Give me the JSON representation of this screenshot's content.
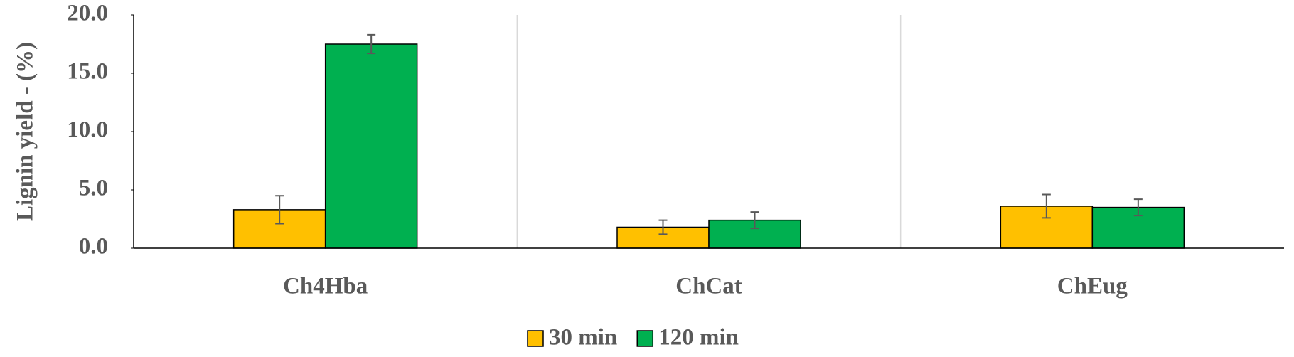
{
  "chart_data": {
    "type": "bar",
    "y_label": "Lignin yield - (%)",
    "categories": [
      "Ch4Hba",
      "ChCat",
      "ChEug"
    ],
    "series": [
      {
        "name": "30 min",
        "color": "#ffc000",
        "values": [
          3.3,
          1.8,
          3.6
        ],
        "errors": [
          1.2,
          0.6,
          1.0
        ]
      },
      {
        "name": "120 min",
        "color": "#00b050",
        "values": [
          17.5,
          2.4,
          3.5
        ],
        "errors": [
          0.8,
          0.7,
          0.7
        ]
      }
    ],
    "ylim": [
      0,
      20
    ],
    "yticks": [
      {
        "value": 0,
        "label": "0.0"
      },
      {
        "value": 5,
        "label": "5.0"
      },
      {
        "value": 10,
        "label": "10.0"
      },
      {
        "value": 15,
        "label": "15.0"
      },
      {
        "value": 20,
        "label": "20.0"
      }
    ],
    "legend": "bottom"
  }
}
